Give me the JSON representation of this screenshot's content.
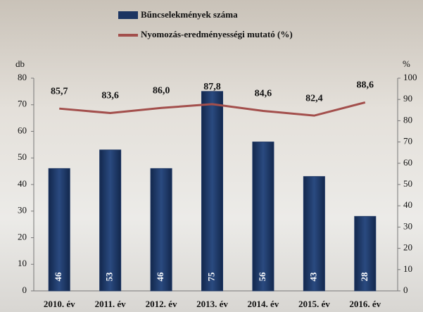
{
  "chart_data": {
    "type": "bar_line",
    "categories": [
      "2010. év",
      "2011. év",
      "2012. év",
      "2013. év",
      "2014. év",
      "2015. év",
      "2016. év"
    ],
    "series": [
      {
        "name": "Bűncselekmények száma",
        "type": "bar",
        "color": "#1c3562",
        "values": [
          46,
          53,
          46,
          75,
          56,
          43,
          28
        ]
      },
      {
        "name": "Nyomozás-eredményességi mutató (%)",
        "type": "line",
        "color": "#a34f4c",
        "axis": "y2",
        "values": [
          85.7,
          83.6,
          86.0,
          87.8,
          84.6,
          82.4,
          88.6
        ],
        "value_labels": [
          "85,7",
          "83,6",
          "86,0",
          "87,8",
          "84,6",
          "82,4",
          "88,6"
        ]
      }
    ],
    "y_label": "db",
    "y2_label": "%",
    "ylim": [
      0,
      80
    ],
    "yticks": [
      0,
      10,
      20,
      30,
      40,
      50,
      60,
      70,
      80
    ],
    "y2lim": [
      0,
      100
    ],
    "y2ticks": [
      0,
      10,
      20,
      30,
      40,
      50,
      60,
      70,
      80,
      90,
      100
    ],
    "grid": false
  }
}
